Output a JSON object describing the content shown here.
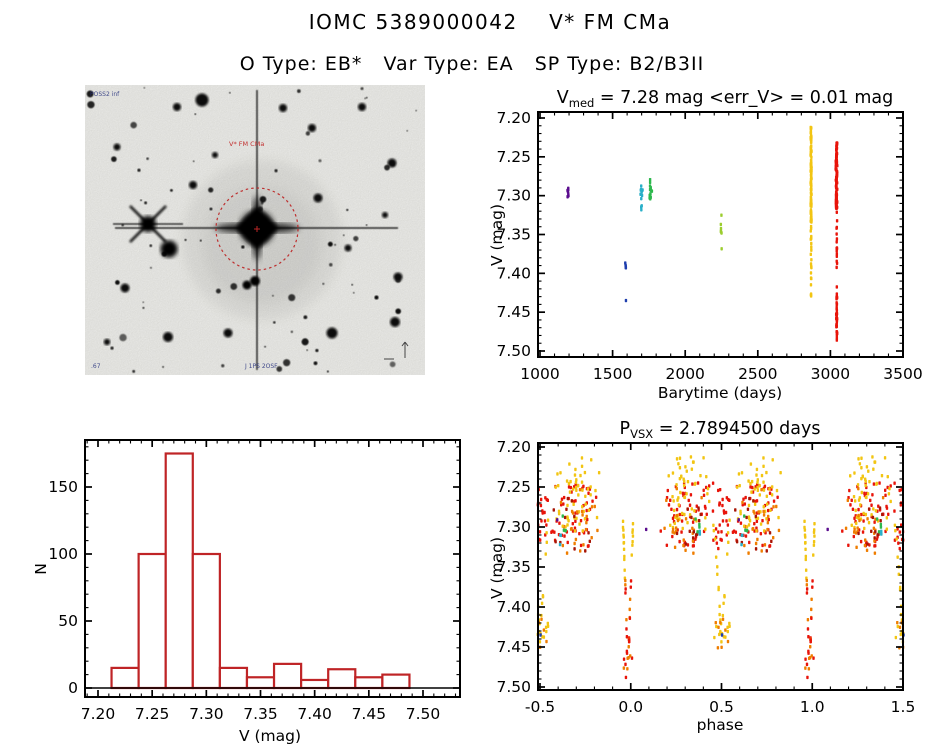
{
  "page": {
    "title": "IOMC 5389000042    V* FM CMa",
    "subtitle": "O Type: EB*   Var Type: EA   SP Type: B2/B3II"
  },
  "sky": {
    "bg": "#f4f4f0",
    "labels": {
      "survey": "POSS2 inf",
      "target": "V* FM CMa",
      "footer": "J 1PS 2OSF",
      "corner": ".67"
    },
    "target_circle_color": "#cc2a2a",
    "seed": 7,
    "n_stars": 74
  },
  "chart_data": [
    {
      "id": "lightcurve",
      "type": "scatter",
      "title": {
        "main": "V",
        "sub": "med",
        "rest": " = 7.28 mag <err_V> = 0.01 mag"
      },
      "xlabel": "Barytime (days)",
      "ylabel": "V (mag)",
      "xlim": [
        1000,
        3500
      ],
      "ylim": [
        7.5,
        7.2
      ],
      "grid": false,
      "xticks": [
        "1000",
        "1500",
        "2000",
        "2500",
        "3000",
        "3500"
      ],
      "yticks": [
        "7.20",
        "7.25",
        "7.30",
        "7.35",
        "7.40",
        "7.45",
        "7.50"
      ],
      "x_minor": 100,
      "y_minor": 0.01,
      "clusters": [
        {
          "kind": "blob",
          "color": "#5b0d8e",
          "x": 1193,
          "xs": 5,
          "y1": 7.287,
          "y2": 7.306,
          "n": 8
        },
        {
          "kind": "blob",
          "color": "#1f3fae",
          "x": 1590,
          "xs": 4,
          "y1": 7.386,
          "y2": 7.399,
          "n": 5
        },
        {
          "kind": "points",
          "color": "#1f3fae",
          "pts": [
            [
              1592,
              7.435
            ]
          ]
        },
        {
          "kind": "blob",
          "color": "#29afc8",
          "x": 1700,
          "xs": 9,
          "y1": 7.286,
          "y2": 7.325,
          "n": 13
        },
        {
          "kind": "blob",
          "color": "#2db84d",
          "x": 1762,
          "xs": 11,
          "y1": 7.278,
          "y2": 7.305,
          "n": 13
        },
        {
          "kind": "blob",
          "color": "#9ccd2f",
          "x": 2248,
          "xs": 4,
          "y1": 7.322,
          "y2": 7.374,
          "n": 7
        },
        {
          "kind": "blob",
          "color": "#f2c513",
          "x": 2867,
          "xs": 4,
          "y1": 7.212,
          "y2": 7.335,
          "n": 120
        },
        {
          "kind": "blob",
          "color": "#f2c513",
          "x": 2867,
          "xs": 3,
          "y1": 7.335,
          "y2": 7.432,
          "n": 22
        },
        {
          "kind": "blob",
          "color": "#e8140a",
          "x": 3042,
          "xs": 6,
          "y1": 7.231,
          "y2": 7.318,
          "n": 130
        },
        {
          "kind": "blob",
          "color": "#e8140a",
          "x": 3044,
          "xs": 4,
          "y1": 7.318,
          "y2": 7.43,
          "n": 18
        },
        {
          "kind": "blob",
          "color": "#e8140a",
          "x": 3043,
          "xs": 4,
          "y1": 7.43,
          "y2": 7.487,
          "n": 40
        }
      ]
    },
    {
      "id": "histogram",
      "type": "bar",
      "xlabel": "V (mag)",
      "ylabel": "N",
      "xlim": [
        7.19,
        7.53
      ],
      "ylim": [
        0,
        185
      ],
      "grid": false,
      "bar_color": "#bf2426",
      "xticks": [
        "7.20",
        "7.25",
        "7.30",
        "7.35",
        "7.40",
        "7.45",
        "7.50"
      ],
      "yticks": [
        "0",
        "50",
        "100",
        "150"
      ],
      "x_minor": 0.01,
      "y_minor": 10,
      "bin_start": 7.2125,
      "bin_width": 0.025,
      "values": [
        15,
        100,
        175,
        100,
        15,
        8,
        18,
        6,
        14,
        8,
        10
      ]
    },
    {
      "id": "phase",
      "type": "scatter",
      "title": {
        "main": "P",
        "sub": "VSX",
        "rest": " = 2.7894500 days"
      },
      "xlabel": "phase",
      "ylabel": "V (mag)",
      "xlim": [
        -0.5,
        1.5
      ],
      "ylim": [
        7.5,
        7.2
      ],
      "grid": false,
      "xticks": [
        "-0.5",
        "0.0",
        "0.5",
        "1.0",
        "1.5"
      ],
      "yticks": [
        "7.20",
        "7.25",
        "7.30",
        "7.35",
        "7.40",
        "7.45",
        "7.50"
      ],
      "x_minor": 0.1,
      "y_minor": 0.01,
      "mirror_period": 1,
      "clusters": [
        {
          "kind": "blob",
          "color": "#e8140a",
          "phase": 0.3,
          "ps": 0.16,
          "y1": 7.245,
          "y2": 7.325,
          "n": 55
        },
        {
          "kind": "blob",
          "color": "#f2c513",
          "phase": 0.31,
          "ps": 0.15,
          "y1": 7.212,
          "y2": 7.305,
          "n": 55
        },
        {
          "kind": "blob",
          "color": "#ef7d00",
          "phase": 0.28,
          "ps": 0.14,
          "y1": 7.25,
          "y2": 7.335,
          "n": 22
        },
        {
          "kind": "blob",
          "color": "#a81505",
          "phase": 0.31,
          "ps": 0.13,
          "y1": 7.26,
          "y2": 7.33,
          "n": 12
        },
        {
          "kind": "blob",
          "color": "#2db84d",
          "phase": 0.375,
          "ps": 0.02,
          "y1": 7.282,
          "y2": 7.308,
          "n": 4
        },
        {
          "kind": "blob",
          "color": "#29afc8",
          "phase": 0.385,
          "ps": 0.008,
          "y1": 7.3,
          "y2": 7.324,
          "n": 3
        },
        {
          "kind": "blob",
          "color": "#e8140a",
          "phase": 0.7,
          "ps": 0.16,
          "y1": 7.245,
          "y2": 7.325,
          "n": 55
        },
        {
          "kind": "blob",
          "color": "#f2c513",
          "phase": 0.69,
          "ps": 0.15,
          "y1": 7.212,
          "y2": 7.305,
          "n": 55
        },
        {
          "kind": "blob",
          "color": "#ef7d00",
          "phase": 0.72,
          "ps": 0.14,
          "y1": 7.25,
          "y2": 7.335,
          "n": 22
        },
        {
          "kind": "blob",
          "color": "#a81505",
          "phase": 0.69,
          "ps": 0.13,
          "y1": 7.26,
          "y2": 7.33,
          "n": 12
        },
        {
          "kind": "blob",
          "color": "#2db84d",
          "phase": 0.63,
          "ps": 0.015,
          "y1": 7.285,
          "y2": 7.305,
          "n": 4
        },
        {
          "kind": "blob",
          "color": "#29afc8",
          "phase": 0.615,
          "ps": 0.008,
          "y1": 7.305,
          "y2": 7.325,
          "n": 3
        },
        {
          "kind": "blob",
          "color": "#e8140a",
          "phase": 0.5,
          "ps": 0.05,
          "y1": 7.25,
          "y2": 7.33,
          "n": 28
        },
        {
          "kind": "dip",
          "phase": 0.985,
          "ps": 0.028,
          "vtop": 7.3,
          "vbottom": 7.487,
          "n": 50,
          "colors": [
            "#f2c513",
            "#e8140a",
            "#ef7d00"
          ],
          "split": 7.365
        },
        {
          "kind": "dip",
          "phase": 0.5,
          "ps": 0.045,
          "vtop": 7.295,
          "vbottom": 7.447,
          "n": 42,
          "colors": [
            "#f2c513",
            "#f2c513",
            "#ef7d00"
          ],
          "split": 7.41
        },
        {
          "kind": "points",
          "color": "#5b0d8e",
          "pts": [
            [
              0.085,
              7.303
            ],
            [
              0.595,
              7.291
            ]
          ]
        },
        {
          "kind": "points",
          "color": "#1f3fae",
          "pts": [
            [
              0.503,
              7.435
            ]
          ]
        }
      ]
    }
  ]
}
